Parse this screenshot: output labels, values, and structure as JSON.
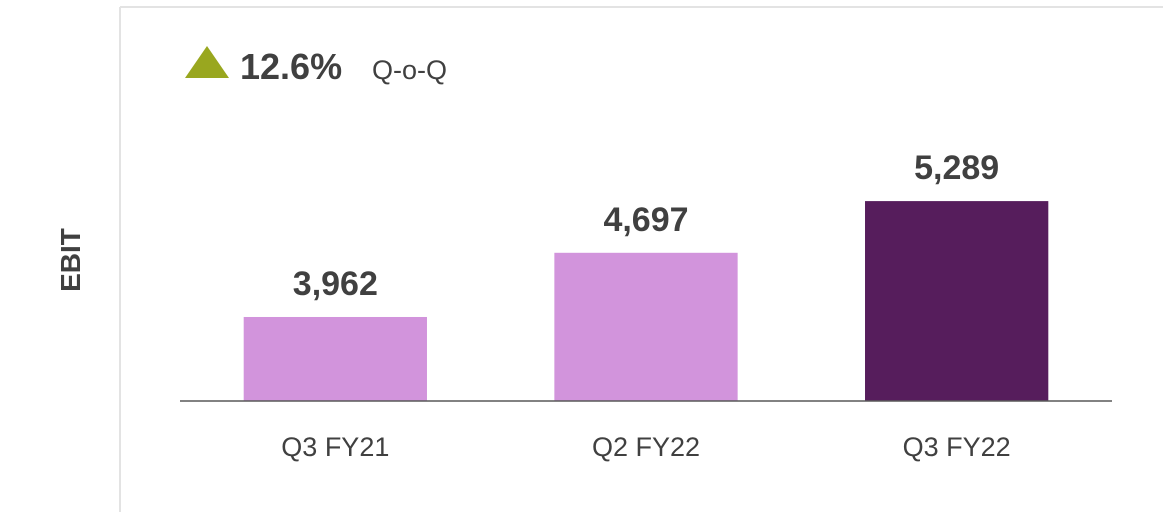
{
  "chart_data": {
    "type": "bar",
    "y_label": "EBIT",
    "annotations": [
      "12.6%",
      "Q-o-Q"
    ],
    "categories": [
      "Q3 FY21",
      "Q2 FY22",
      "Q3 FY22"
    ],
    "values": [
      3962,
      4697,
      5289
    ],
    "value_labels": [
      "3,962",
      "4,697",
      "5,289"
    ],
    "colors": [
      "#d294dc",
      "#d294dc",
      "#561d5c"
    ],
    "ylim": [
      3000,
      6000
    ]
  }
}
